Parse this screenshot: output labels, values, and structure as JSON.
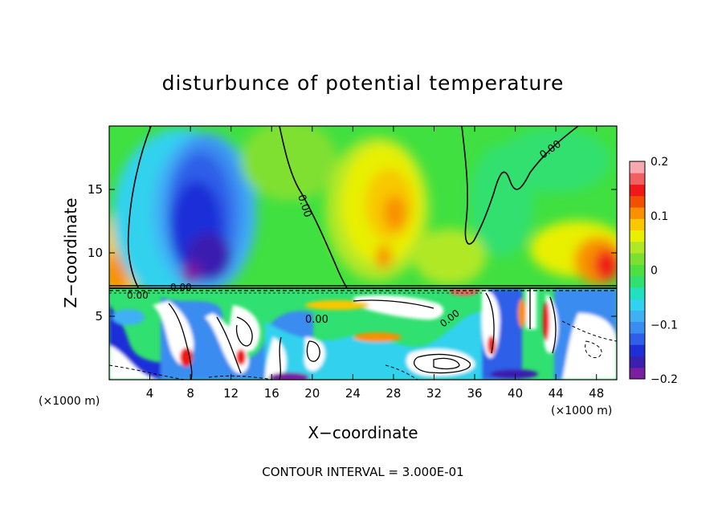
{
  "chart_data": {
    "type": "heatmap",
    "title": "disturbunce of potential temperature",
    "xlabel": "X−coordinate",
    "ylabel": "Z−coordinate",
    "x_unit": "(×1000 m)",
    "x_unit_right": "(×1000 m)",
    "xlim": [
      0,
      50
    ],
    "ylim": [
      0,
      20
    ],
    "x_ticks": [
      4,
      8,
      12,
      16,
      20,
      24,
      28,
      32,
      36,
      40,
      44,
      48
    ],
    "y_ticks": [
      5,
      10,
      15
    ],
    "colorbar": {
      "range": [
        -0.2,
        0.2
      ],
      "ticks": [
        -0.2,
        -0.1,
        0,
        0.1,
        0.2
      ],
      "tick_labels": [
        "−0.2",
        "−0.1",
        "0",
        "0.1",
        "0.2"
      ],
      "colors": [
        "#7a1fa0",
        "#3a1fb0",
        "#1e2fd8",
        "#2f5ee8",
        "#3a8cf0",
        "#40b0f5",
        "#30d2ee",
        "#20e0c0",
        "#30e070",
        "#4de040",
        "#7de030",
        "#b0e828",
        "#e8f000",
        "#f8c800",
        "#f89000",
        "#f05000",
        "#f01818",
        "#f06060",
        "#f8a8b0"
      ]
    },
    "contour_labels": [
      "0.00",
      "0.00",
      "0.00",
      "0.00",
      "0.00",
      "0.00"
    ],
    "footer": "CONTOUR INTERVAL = 3.000E-01"
  }
}
